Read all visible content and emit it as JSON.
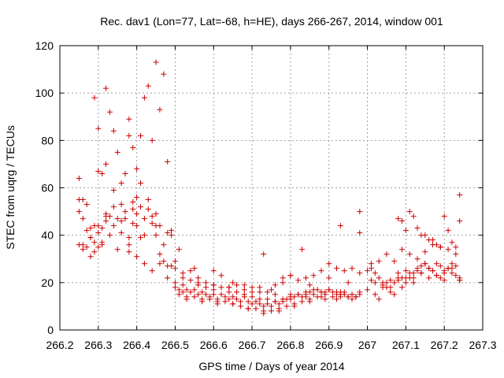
{
  "chart_data": {
    "type": "scatter",
    "title": "Rec. dav1 (Lon=77, Lat=-68, h=HE), days 266-267, 2014, window 001",
    "xlabel": "GPS time / Days of year 2014",
    "ylabel": "STEC from uqrg / TECUs",
    "xlim": [
      266.2,
      267.3
    ],
    "ylim": [
      0,
      120
    ],
    "x_ticks": [
      266.2,
      266.3,
      266.4,
      266.5,
      266.6,
      266.7,
      266.8,
      266.9,
      267.0,
      267.1,
      267.2,
      267.3
    ],
    "x_tick_labels": [
      "266.2",
      "266.3",
      "266.4",
      "266.5",
      "266.6",
      "266.7",
      "266.8",
      "266.9",
      "267",
      "267.1",
      "267.2",
      "267.3"
    ],
    "y_ticks": [
      0,
      20,
      40,
      60,
      80,
      100,
      120
    ],
    "y_tick_labels": [
      "0",
      "20",
      "40",
      "60",
      "80",
      "100",
      "120"
    ],
    "grid": true,
    "marker": "plus",
    "color": "#cc0000",
    "series": [
      {
        "x": [
          266.25,
          266.25,
          266.25,
          266.26,
          266.26,
          266.27,
          266.27,
          266.28,
          266.28,
          266.29,
          266.29,
          266.3,
          266.3,
          266.31,
          266.31,
          266.32,
          266.32,
          266.33,
          266.34,
          266.35,
          266.36,
          266.37,
          266.38,
          266.38,
          266.39,
          266.39,
          266.4,
          266.4,
          266.41,
          266.41,
          266.42,
          266.43,
          266.44,
          266.45,
          266.45,
          266.46,
          266.47,
          266.48,
          266.49,
          266.25,
          266.26,
          266.27,
          266.28,
          266.29,
          266.3,
          266.31,
          266.32,
          266.33,
          266.34,
          266.35,
          266.36,
          266.37,
          266.38,
          266.39,
          266.4,
          266.41,
          266.42,
          266.43,
          266.44,
          266.45,
          266.46,
          266.47,
          266.48,
          266.49,
          266.5,
          266.51,
          266.26,
          266.28,
          266.3,
          266.32,
          266.34,
          266.36,
          266.38,
          266.4,
          266.42,
          266.44,
          266.46,
          266.48,
          266.5,
          266.52,
          266.54,
          266.56,
          266.58,
          266.6,
          266.62,
          266.64,
          266.66,
          266.68,
          266.7,
          266.72,
          266.74,
          266.76,
          266.78,
          266.8,
          266.82,
          266.84,
          266.86,
          266.88,
          266.9,
          266.92,
          266.94,
          266.96,
          266.98,
          266.5,
          266.51,
          266.52,
          266.53,
          266.54,
          266.55,
          266.56,
          266.57,
          266.58,
          266.59,
          266.6,
          266.61,
          266.62,
          266.63,
          266.64,
          266.65,
          266.66,
          266.67,
          266.68,
          266.69,
          266.7,
          266.71,
          266.72,
          266.73,
          266.74,
          266.75,
          266.76,
          266.77,
          266.78,
          266.79,
          266.8,
          266.81,
          266.82,
          266.83,
          266.84,
          266.85,
          266.86,
          266.87,
          266.88,
          266.89,
          266.9,
          266.91,
          266.92,
          266.93,
          266.94,
          266.95,
          266.96,
          266.97,
          266.98,
          266.5,
          266.52,
          266.54,
          266.56,
          266.58,
          266.6,
          266.62,
          266.64,
          266.66,
          266.68,
          266.7,
          266.72,
          266.74,
          266.76,
          266.78,
          266.8,
          266.82,
          266.84,
          266.86,
          266.88,
          266.9,
          266.92,
          266.94,
          266.96,
          266.98,
          266.51,
          266.53,
          266.55,
          266.57,
          266.59,
          266.61,
          266.63,
          266.65,
          266.67,
          266.69,
          266.71,
          266.73,
          266.75,
          266.77,
          266.79,
          266.81,
          266.83,
          266.85,
          266.87,
          266.89,
          266.91,
          266.93,
          266.95,
          266.97,
          266.52,
          266.56,
          266.6,
          266.64,
          266.68,
          266.72,
          266.76,
          266.8,
          266.84,
          266.88,
          266.92,
          266.96,
          266.53,
          266.57,
          266.61,
          266.65,
          266.69,
          266.73,
          266.77,
          266.81,
          266.85,
          266.89,
          266.93,
          266.97,
          266.55,
          266.6,
          266.65,
          266.7,
          266.75,
          266.8,
          266.85,
          266.9,
          266.95,
          266.73,
          266.78,
          266.83,
          266.93,
          266.98,
          266.98,
          267.0,
          267.01,
          267.02,
          267.03,
          267.04,
          267.05,
          267.06,
          267.07,
          267.08,
          267.09,
          267.1,
          267.11,
          267.12,
          267.13,
          267.14,
          267.15,
          267.16,
          267.17,
          267.18,
          267.19,
          267.2,
          267.21,
          267.22,
          267.23,
          267.24,
          267.0,
          267.01,
          267.02,
          267.03,
          267.04,
          267.05,
          267.06,
          267.07,
          267.08,
          267.09,
          267.1,
          267.11,
          267.12,
          267.13,
          267.14,
          267.15,
          267.16,
          267.17,
          267.18,
          267.19,
          267.2,
          267.21,
          267.22,
          267.23,
          267.24,
          267.01,
          267.03,
          267.05,
          267.07,
          267.09,
          267.11,
          267.13,
          267.15,
          267.17,
          267.19,
          267.21,
          267.23,
          267.02,
          267.04,
          267.06,
          267.08,
          267.1,
          267.12,
          267.14,
          267.16,
          267.18,
          267.2,
          267.22,
          267.24,
          267.08,
          267.09,
          267.1,
          267.11,
          267.12,
          267.13,
          267.14,
          267.15,
          267.16,
          267.17,
          267.18,
          267.19,
          267.2,
          267.21,
          267.22,
          267.23,
          267.24,
          267.24
        ],
        "y": [
          64,
          55,
          50,
          55,
          47,
          42,
          53,
          43,
          39,
          44,
          37,
          41,
          35,
          43,
          37,
          46,
          48,
          40,
          44,
          47,
          41,
          50,
          33,
          39,
          51,
          54,
          56,
          44,
          62,
          52,
          47,
          51,
          45,
          44,
          49,
          32,
          29,
          27,
          42,
          36,
          36,
          35,
          39,
          33,
          44,
          36,
          49,
          48,
          52,
          34,
          46,
          47,
          36,
          45,
          31,
          39,
          40,
          55,
          48,
          40,
          44,
          36,
          41,
          27,
          29,
          34,
          34,
          31,
          67,
          70,
          59,
          53,
          82,
          49,
          28,
          25,
          28,
          22,
          26,
          24,
          25,
          22,
          20,
          19,
          23,
          18,
          19,
          19,
          16,
          18,
          16,
          19,
          20,
          23,
          21,
          22,
          23,
          25,
          28,
          26,
          25,
          26,
          24,
          18,
          17,
          16,
          17,
          16,
          17,
          15,
          16,
          15,
          14,
          15,
          13,
          15,
          14,
          13,
          14,
          13,
          12,
          14,
          12,
          11,
          12,
          11,
          10,
          11,
          10,
          12,
          11,
          12,
          13,
          13,
          14,
          15,
          14,
          15,
          16,
          15,
          17,
          16,
          16,
          17,
          16,
          15,
          16,
          15,
          14,
          15,
          14,
          15,
          20,
          22,
          21,
          19,
          18,
          17,
          18,
          16,
          16,
          15,
          14,
          13,
          13,
          12,
          13,
          14,
          15,
          16,
          17,
          16,
          17,
          16,
          16,
          15,
          16,
          15,
          14,
          14,
          13,
          13,
          12,
          12,
          11,
          10,
          9,
          9,
          8,
          8,
          9,
          10,
          11,
          12,
          13,
          14,
          15,
          14,
          15,
          14,
          14,
          19,
          20,
          19,
          18,
          17,
          16,
          15,
          15,
          14,
          14,
          13,
          13,
          13,
          12,
          11,
          11,
          9,
          7,
          8,
          10,
          12,
          13,
          14,
          14,
          26,
          25,
          20,
          18,
          17,
          23,
          19,
          22,
          20,
          32,
          22,
          34,
          44,
          50,
          41,
          25,
          28,
          24,
          22,
          20,
          18,
          16,
          15,
          22,
          18,
          20,
          22,
          24,
          25,
          27,
          28,
          26,
          25,
          23,
          22,
          24,
          26,
          28,
          27,
          22,
          17,
          21,
          15,
          13,
          18,
          20,
          21,
          20,
          24,
          22,
          25,
          24,
          22,
          26,
          24,
          28,
          26,
          25,
          28,
          27,
          25,
          26,
          24,
          23,
          21,
          26,
          29,
          32,
          29,
          34,
          32,
          30,
          33,
          36,
          35,
          34,
          32,
          20,
          19,
          18,
          21,
          22,
          20,
          24,
          22,
          23,
          21,
          26,
          21,
          47,
          46,
          42,
          50,
          48,
          43,
          40,
          40,
          38,
          38,
          36,
          35,
          48,
          42,
          37,
          35,
          57,
          46
        ]
      },
      {
        "x": [
          266.29,
          266.3,
          266.31,
          266.32,
          266.33,
          266.34,
          266.35,
          266.36,
          266.37,
          266.38,
          266.39,
          266.4,
          266.41,
          266.42,
          266.43,
          266.44,
          266.45,
          266.46,
          266.47,
          266.48,
          266.49
        ],
        "y": [
          98,
          85,
          66,
          102,
          92,
          84,
          75,
          62,
          66,
          89,
          77,
          68,
          82,
          98,
          103,
          80,
          113,
          93,
          108,
          71,
          40
        ]
      }
    ]
  }
}
